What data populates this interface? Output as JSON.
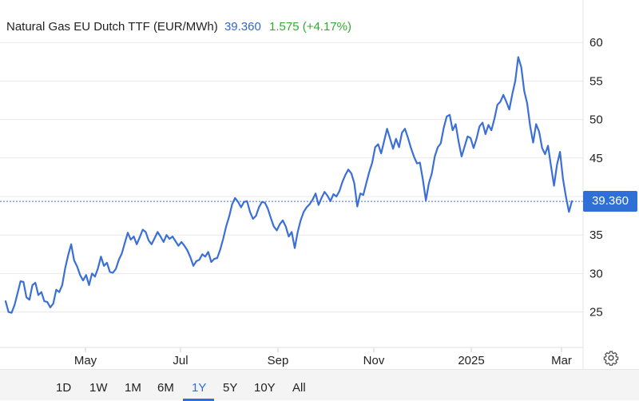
{
  "header": {
    "title": "Natural Gas EU Dutch TTF (EUR/MWh)",
    "price": "39.360",
    "change": "1.575 (+4.17%)"
  },
  "price_tag": "39.360",
  "ranges": [
    {
      "label": "1D"
    },
    {
      "label": "1W"
    },
    {
      "label": "1M"
    },
    {
      "label": "6M"
    },
    {
      "label": "1Y",
      "active": true
    },
    {
      "label": "5Y"
    },
    {
      "label": "10Y"
    },
    {
      "label": "All"
    }
  ],
  "colors": {
    "line": "#3b6fd8",
    "accent": "#2f6fd6",
    "change": "#33aa33"
  },
  "settings_icon": "gear-icon",
  "chart_data": {
    "type": "line",
    "title": "Natural Gas EU Dutch TTF (EUR/MWh)",
    "x_tick_labels": [
      "May",
      "Jul",
      "Sep",
      "Nov",
      "2025",
      "Mar"
    ],
    "y_tick_labels": [
      "25",
      "30",
      "35",
      "40",
      "45",
      "50",
      "55",
      "60"
    ],
    "ylim": [
      20.5,
      65
    ],
    "grid": "horizontal",
    "last_value": 39.36,
    "series": [
      {
        "values": [
          26.4,
          25.0,
          24.9,
          25.9,
          27.4,
          29.0,
          28.9,
          26.9,
          26.6,
          28.5,
          28.8,
          27.2,
          27.6,
          26.4,
          26.3,
          25.6,
          26.1,
          27.9,
          27.6,
          28.5,
          30.7,
          32.4,
          33.8,
          31.7,
          30.9,
          29.8,
          29.1,
          29.8,
          28.5,
          30.0,
          29.6,
          30.7,
          32.2,
          31.0,
          31.4,
          30.2,
          30.1,
          30.6,
          31.8,
          32.6,
          34.0,
          35.3,
          34.4,
          34.8,
          33.8,
          34.7,
          35.7,
          35.4,
          34.3,
          33.8,
          34.6,
          35.4,
          34.8,
          34.1,
          35.0,
          34.5,
          34.8,
          34.2,
          33.6,
          34.1,
          33.6,
          33.0,
          32.1,
          31.0,
          31.6,
          31.8,
          32.5,
          32.2,
          32.8,
          31.5,
          31.9,
          32.0,
          33.1,
          34.5,
          36.1,
          37.4,
          39.0,
          39.8,
          39.3,
          38.6,
          39.3,
          39.4,
          38.0,
          37.1,
          37.5,
          38.6,
          39.3,
          39.2,
          38.4,
          37.2,
          36.1,
          35.6,
          36.4,
          36.9,
          36.1,
          34.8,
          35.4,
          33.3,
          35.4,
          36.9,
          38.0,
          38.6,
          39.0,
          39.6,
          40.4,
          38.9,
          39.8,
          40.6,
          40.1,
          39.4,
          40.3,
          40.0,
          40.7,
          41.9,
          42.8,
          43.5,
          43.0,
          41.7,
          38.7,
          40.4,
          40.2,
          41.7,
          43.2,
          44.4,
          46.4,
          46.8,
          45.6,
          47.2,
          48.8,
          47.5,
          46.2,
          47.5,
          46.4,
          48.3,
          48.8,
          47.6,
          46.3,
          45.2,
          44.3,
          44.4,
          42.2,
          39.5,
          41.7,
          43.0,
          45.2,
          46.4,
          46.9,
          48.9,
          50.4,
          50.6,
          48.6,
          49.4,
          47.1,
          45.2,
          46.5,
          47.8,
          47.6,
          46.3,
          47.5,
          49.1,
          49.6,
          48.1,
          49.3,
          48.6,
          50.1,
          51.9,
          52.3,
          53.2,
          52.3,
          51.3,
          53.3,
          55.0,
          58.1,
          56.8,
          53.7,
          52.1,
          49.1,
          47.0,
          49.4,
          48.4,
          46.3,
          45.5,
          46.6,
          43.9,
          41.4,
          44.1,
          45.8,
          42.3,
          40.0,
          38.0,
          39.4
        ]
      }
    ]
  }
}
